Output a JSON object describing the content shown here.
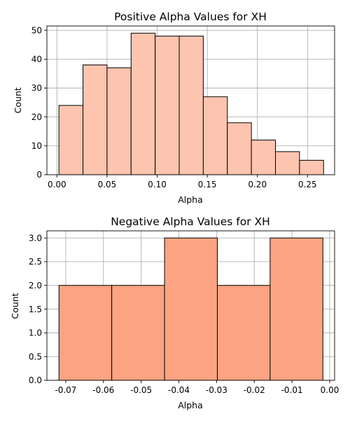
{
  "chart_data": [
    {
      "type": "bar",
      "title": "Positive Alpha Values for XH",
      "xlabel": "Alpha",
      "ylabel": "Count",
      "xlim": [
        -0.01,
        0.277
      ],
      "ylim": [
        0,
        51.5
      ],
      "grid": true,
      "bar_color": "#fdc5b0",
      "bin_edges": [
        0.002,
        0.026,
        0.05,
        0.074,
        0.098,
        0.122,
        0.146,
        0.17,
        0.194,
        0.218,
        0.242,
        0.266
      ],
      "values": [
        24,
        38,
        37,
        49,
        48,
        48,
        27,
        18,
        12,
        8,
        5
      ],
      "xticks": [
        0.0,
        0.05,
        0.1,
        0.15,
        0.2,
        0.25
      ],
      "xtick_labels": [
        "0.00",
        "0.05",
        "0.10",
        "0.15",
        "0.20",
        "0.25"
      ],
      "yticks": [
        0,
        10,
        20,
        30,
        40,
        50
      ],
      "ytick_labels": [
        "0",
        "10",
        "20",
        "30",
        "40",
        "50"
      ]
    },
    {
      "type": "bar",
      "title": "Negative Alpha Values for XH",
      "xlabel": "Alpha",
      "ylabel": "Count",
      "xlim": [
        -0.075,
        0.0013
      ],
      "ylim": [
        0,
        3.15
      ],
      "grid": true,
      "bar_color": "#fca482",
      "bin_edges": [
        -0.0718,
        -0.0578,
        -0.0438,
        -0.0298,
        -0.0158,
        -0.0018
      ],
      "values": [
        2,
        2,
        3,
        2,
        3
      ],
      "xticks": [
        -0.07,
        -0.06,
        -0.05,
        -0.04,
        -0.03,
        -0.02,
        -0.01,
        0.0
      ],
      "xtick_labels": [
        "-0.07",
        "-0.06",
        "-0.05",
        "-0.04",
        "-0.03",
        "-0.02",
        "-0.01",
        "0.00"
      ],
      "yticks": [
        0,
        0.5,
        1.0,
        1.5,
        2.0,
        2.5,
        3.0
      ],
      "ytick_labels": [
        "0.0",
        "0.5",
        "1.0",
        "1.5",
        "2.0",
        "2.5",
        "3.0"
      ]
    }
  ]
}
